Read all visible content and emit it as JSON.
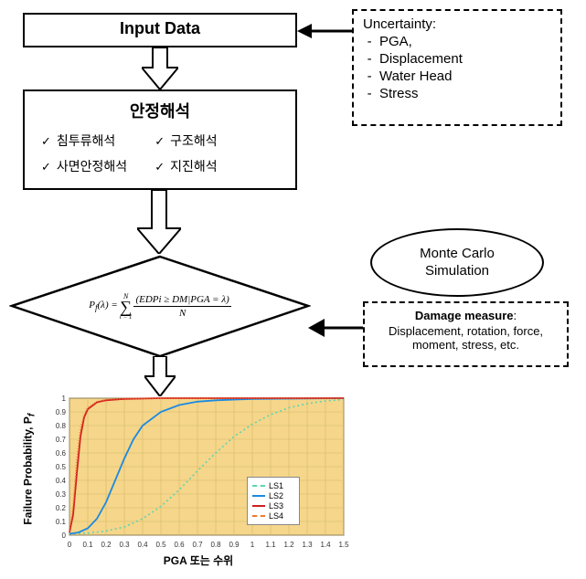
{
  "flowchart": {
    "input_box": {
      "title": "Input Data",
      "title_fontsize": 18
    },
    "uncertainty_box": {
      "title": "Uncertainty:",
      "items": [
        "PGA,",
        "Displacement",
        "Water Head",
        "Stress"
      ],
      "fontsize": 15
    },
    "analysis_box": {
      "title": "안정해석",
      "title_fontsize": 18,
      "items": [
        "침투류해석",
        "사면안정해석",
        "구조해석",
        "지진해석"
      ],
      "item_fontsize": 14,
      "check_mark": "✓"
    },
    "monte_carlo": {
      "label_line1": "Monte Carlo",
      "label_line2": "Simulation",
      "fontsize": 15
    },
    "formula": {
      "lhs": "P",
      "lhs_sub": "f",
      "lhs_arg": "(λ) =",
      "sum_upper": "N",
      "sum_lower": "i = 1",
      "numerator": "(EDPi ≥ DM|PGA = λ)",
      "denominator": "N",
      "fontsize": 11
    },
    "damage_box": {
      "title": "Damage measure",
      "body": "Displacement, rotation, force, moment, stress, etc.",
      "fontsize": 13
    }
  },
  "chart": {
    "type": "line",
    "ylabel": "Failure Probability, P",
    "ylabel_sub": "f",
    "xlabel": "PGA 또는 수위",
    "label_fontsize": 12,
    "xlim": [
      0,
      1.5
    ],
    "ylim": [
      0,
      1
    ],
    "xtick_step": 0.1,
    "ytick_step": 0.1,
    "tick_fontsize": 8,
    "background_color": "#f5d68a",
    "grid_color": "#d4b968",
    "axis_color": "#444444",
    "series": [
      {
        "name": "LS1",
        "color": "#5fd4b1",
        "dash": "2,3",
        "width": 1.6,
        "points": [
          [
            0,
            0.01
          ],
          [
            0.1,
            0.015
          ],
          [
            0.2,
            0.03
          ],
          [
            0.3,
            0.06
          ],
          [
            0.4,
            0.12
          ],
          [
            0.5,
            0.21
          ],
          [
            0.6,
            0.33
          ],
          [
            0.7,
            0.47
          ],
          [
            0.8,
            0.6
          ],
          [
            0.9,
            0.72
          ],
          [
            1.0,
            0.81
          ],
          [
            1.1,
            0.88
          ],
          [
            1.2,
            0.93
          ],
          [
            1.3,
            0.96
          ],
          [
            1.4,
            0.98
          ],
          [
            1.5,
            0.99
          ]
        ]
      },
      {
        "name": "LS2",
        "color": "#1a8ae2",
        "dash": "",
        "width": 1.8,
        "points": [
          [
            0,
            0.01
          ],
          [
            0.05,
            0.02
          ],
          [
            0.1,
            0.05
          ],
          [
            0.15,
            0.12
          ],
          [
            0.2,
            0.24
          ],
          [
            0.25,
            0.4
          ],
          [
            0.3,
            0.56
          ],
          [
            0.35,
            0.7
          ],
          [
            0.4,
            0.8
          ],
          [
            0.5,
            0.9
          ],
          [
            0.6,
            0.95
          ],
          [
            0.7,
            0.975
          ],
          [
            0.8,
            0.985
          ],
          [
            1.0,
            0.995
          ],
          [
            1.5,
            1.0
          ]
        ]
      },
      {
        "name": "LS3",
        "color": "#d11f1f",
        "dash": "",
        "width": 1.8,
        "points": [
          [
            0,
            0.02
          ],
          [
            0.02,
            0.15
          ],
          [
            0.04,
            0.45
          ],
          [
            0.06,
            0.72
          ],
          [
            0.08,
            0.86
          ],
          [
            0.1,
            0.92
          ],
          [
            0.15,
            0.97
          ],
          [
            0.2,
            0.985
          ],
          [
            0.3,
            0.995
          ],
          [
            0.5,
            1.0
          ],
          [
            1.5,
            1.0
          ]
        ]
      },
      {
        "name": "LS4",
        "color": "#f07a2e",
        "dash": "1,2",
        "width": 1.6,
        "points": [
          [
            0,
            0.03
          ],
          [
            0.02,
            0.22
          ],
          [
            0.04,
            0.55
          ],
          [
            0.06,
            0.78
          ],
          [
            0.08,
            0.88
          ],
          [
            0.1,
            0.93
          ],
          [
            0.15,
            0.975
          ],
          [
            0.2,
            0.99
          ],
          [
            0.3,
            0.997
          ],
          [
            0.5,
            1.0
          ],
          [
            1.5,
            1.0
          ]
        ]
      }
    ]
  },
  "colors": {
    "black": "#000000",
    "white": "#ffffff"
  }
}
